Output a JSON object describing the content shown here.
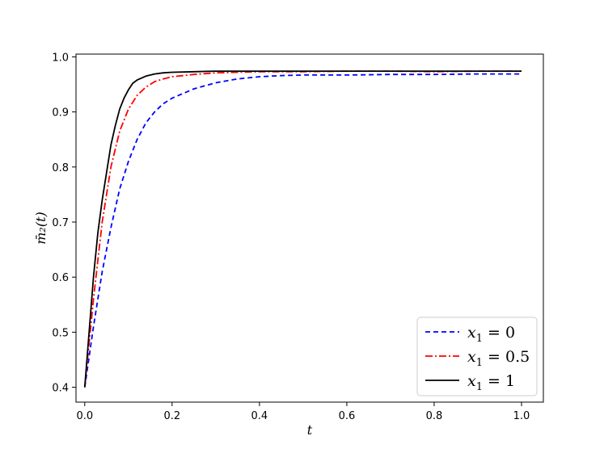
{
  "chart_data": {
    "type": "line",
    "xlabel": "t",
    "ylabel": "m̄₂(t)",
    "xlim": [
      -0.02,
      1.05
    ],
    "ylim": [
      0.373,
      1.005
    ],
    "xticks": [
      0.0,
      0.2,
      0.4,
      0.6,
      0.8,
      1.0
    ],
    "xtick_labels": [
      "0.0",
      "0.2",
      "0.4",
      "0.6",
      "0.8",
      "1.0"
    ],
    "yticks": [
      0.4,
      0.5,
      0.6,
      0.7,
      0.8,
      0.9,
      1.0
    ],
    "ytick_labels": [
      "0.4",
      "0.5",
      "0.6",
      "0.7",
      "0.8",
      "0.9",
      "1.0"
    ],
    "grid": false,
    "legend_position": "lower-right",
    "series": [
      {
        "name": "x1 = 0",
        "legend_var": "x",
        "legend_sub": "1",
        "legend_rest": " = 0",
        "color": "#0000ff",
        "dash": "6,4",
        "x": [
          0,
          0.02,
          0.04,
          0.06,
          0.08,
          0.1,
          0.12,
          0.14,
          0.16,
          0.18,
          0.2,
          0.25,
          0.3,
          0.35,
          0.4,
          0.45,
          0.5,
          0.6,
          0.7,
          0.8,
          0.9,
          1.0
        ],
        "y": [
          0.4,
          0.51,
          0.61,
          0.69,
          0.76,
          0.81,
          0.85,
          0.88,
          0.9,
          0.915,
          0.925,
          0.942,
          0.953,
          0.96,
          0.964,
          0.966,
          0.967,
          0.967,
          0.968,
          0.968,
          0.969,
          0.969
        ]
      },
      {
        "name": "x1 = 0.5",
        "legend_var": "x",
        "legend_sub": "1",
        "legend_rest": " = 0.5",
        "color": "#ff0000",
        "dash": "9,3,2,3",
        "x": [
          0,
          0.02,
          0.04,
          0.06,
          0.08,
          0.1,
          0.12,
          0.14,
          0.16,
          0.18,
          0.2,
          0.25,
          0.3,
          0.35,
          0.4,
          0.5,
          0.6,
          0.7,
          0.8,
          0.9,
          1.0
        ],
        "y": [
          0.4,
          0.56,
          0.7,
          0.8,
          0.865,
          0.905,
          0.93,
          0.945,
          0.955,
          0.96,
          0.964,
          0.968,
          0.971,
          0.972,
          0.973,
          0.973,
          0.974,
          0.974,
          0.973,
          0.974,
          0.974
        ]
      },
      {
        "name": "x1 = 1",
        "legend_var": "x",
        "legend_sub": "1",
        "legend_rest": " = 1",
        "color": "#000000",
        "dash": "",
        "x": [
          0,
          0.01,
          0.02,
          0.03,
          0.04,
          0.05,
          0.06,
          0.07,
          0.08,
          0.09,
          0.1,
          0.11,
          0.12,
          0.14,
          0.16,
          0.18,
          0.2,
          0.25,
          0.3,
          0.35,
          0.4,
          0.5,
          0.6,
          0.7,
          0.8,
          0.9,
          1.0
        ],
        "y": [
          0.4,
          0.5,
          0.6,
          0.68,
          0.74,
          0.79,
          0.84,
          0.875,
          0.905,
          0.925,
          0.94,
          0.952,
          0.958,
          0.965,
          0.969,
          0.971,
          0.972,
          0.973,
          0.974,
          0.974,
          0.974,
          0.974,
          0.974,
          0.974,
          0.974,
          0.974,
          0.974
        ]
      }
    ]
  }
}
